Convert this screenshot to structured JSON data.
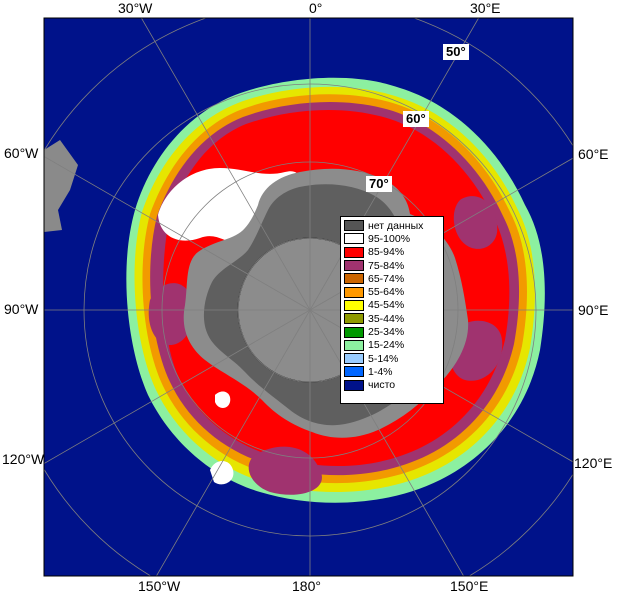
{
  "map": {
    "lon_labels": {
      "top_left": "30°W",
      "top_center": "0°",
      "top_right": "30°E",
      "left_upper": "60°W",
      "left_middle": "90°W",
      "left_lower": "120°W",
      "right_upper": "60°E",
      "right_middle": "90°E",
      "right_lower": "120°E",
      "bottom_left": "150°W",
      "bottom_center": "180°",
      "bottom_right": "150°E"
    },
    "lat_labels": [
      "50°",
      "60°",
      "70°"
    ],
    "colors": {
      "ocean": "#00128a",
      "graticule": "#7f7f7f",
      "continent": "#8c8c8c",
      "shelf": "#5f5f5f",
      "polar_hole": "#8c8c8c",
      "land": "#8a8a8a",
      "band_outer": "#8cf0a0",
      "band_mid": "#e6e600",
      "band_inner": "#f29a00"
    }
  },
  "legend": [
    {
      "label": "нет данных",
      "color": "#555555"
    },
    {
      "label": "95-100%",
      "color": "#ffffff"
    },
    {
      "label": "85-94%",
      "color": "#ff0000"
    },
    {
      "label": "75-84%",
      "color": "#a0336f"
    },
    {
      "label": "65-74%",
      "color": "#cc6600"
    },
    {
      "label": "55-64%",
      "color": "#ff9900"
    },
    {
      "label": "45-54%",
      "color": "#ffff00"
    },
    {
      "label": "35-44%",
      "color": "#8f9a00"
    },
    {
      "label": "25-34%",
      "color": "#009900"
    },
    {
      "label": "15-24%",
      "color": "#8cf0a0"
    },
    {
      "label": "5-14%",
      "color": "#99ccff"
    },
    {
      "label": "1-4%",
      "color": "#0066ff"
    },
    {
      "label": "чисто",
      "color": "#00128a"
    }
  ]
}
